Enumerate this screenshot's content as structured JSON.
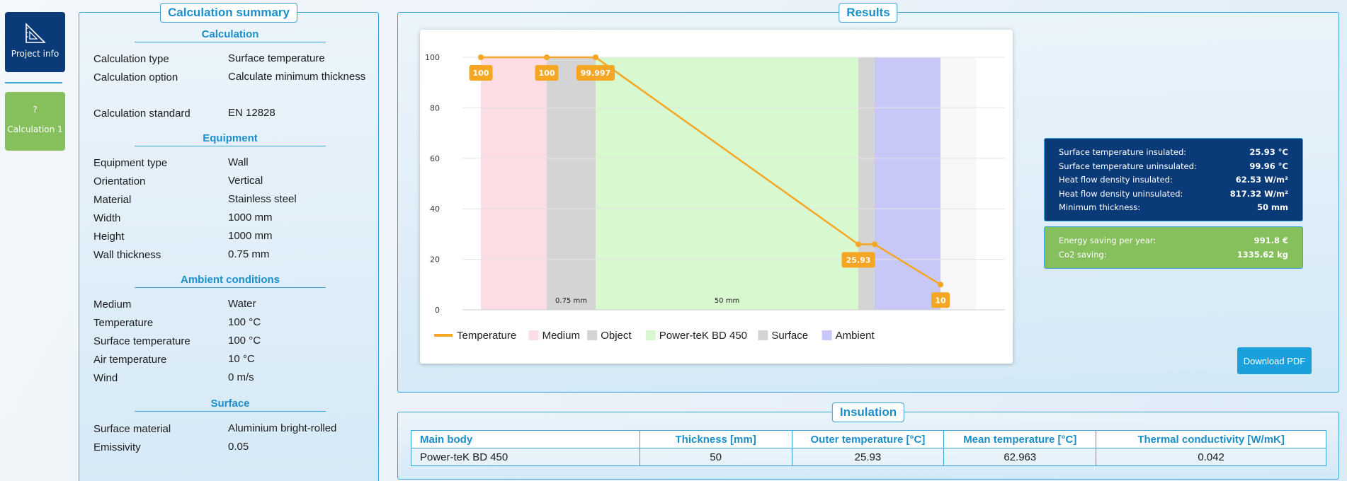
{
  "nav": {
    "project_info": "Project info",
    "calc_icon": "?",
    "calculation_1": "Calculation 1"
  },
  "summary": {
    "title": "Calculation summary",
    "sections": [
      {
        "heading": "Calculation",
        "rows": [
          {
            "label": "Calculation type",
            "value": "Surface temperature"
          },
          {
            "label": "Calculation option",
            "value": "Calculate minimum thickness"
          },
          {
            "label": "Calculation standard",
            "value": "EN 12828"
          }
        ]
      },
      {
        "heading": "Equipment",
        "rows": [
          {
            "label": "Equipment type",
            "value": "Wall"
          },
          {
            "label": "Orientation",
            "value": "Vertical"
          },
          {
            "label": "Material",
            "value": "Stainless steel"
          },
          {
            "label": "Width",
            "value": "1000 mm"
          },
          {
            "label": "Height",
            "value": "1000 mm"
          },
          {
            "label": "Wall thickness",
            "value": "0.75 mm"
          }
        ]
      },
      {
        "heading": "Ambient conditions",
        "rows": [
          {
            "label": "Medium",
            "value": "Water"
          },
          {
            "label": "Temperature",
            "value": "100 °C"
          },
          {
            "label": "Surface temperature",
            "value": "100 °C"
          },
          {
            "label": "Air temperature",
            "value": "10 °C"
          },
          {
            "label": "Wind",
            "value": "0 m/s"
          }
        ]
      },
      {
        "heading": "Surface",
        "rows": [
          {
            "label": "Surface material",
            "value": "Aluminium bright-rolled"
          },
          {
            "label": "Emissivity",
            "value": "0.05"
          }
        ]
      }
    ]
  },
  "results": {
    "title": "Results",
    "stats": [
      {
        "label": "Surface temperature insulated:",
        "value": "25.93 °C"
      },
      {
        "label": "Surface temperature uninsulated:",
        "value": "99.96 °C"
      },
      {
        "label": "Heat flow density insulated:",
        "value": "62.53 W/m²"
      },
      {
        "label": "Heat flow density uninsulated:",
        "value": "817.32 W/m²"
      },
      {
        "label": "Minimum thickness:",
        "value": "50 mm"
      }
    ],
    "savings": [
      {
        "label": "Energy saving per year:",
        "value": "991.8 €"
      },
      {
        "label": "Co2 saving:",
        "value": "1335.62 kg"
      }
    ],
    "download_label": "Download PDF"
  },
  "chart_data": {
    "type": "line",
    "title": "",
    "xlabel": "",
    "ylabel": "",
    "ylim": [
      0,
      100
    ],
    "yticks": [
      0,
      20,
      40,
      60,
      80,
      100
    ],
    "grid": true,
    "legend_position": "bottom-left",
    "regions": [
      {
        "name": "Medium",
        "color": "#fcdde3",
        "label": ""
      },
      {
        "name": "Object",
        "color": "#d4d4d4",
        "label": "0.75 mm"
      },
      {
        "name": "Power-teK BD 450",
        "color": "#d8f8d0",
        "label": "50 mm"
      },
      {
        "name": "Surface",
        "color": "#d4d4d4",
        "label": ""
      },
      {
        "name": "Ambient",
        "color": "#c8c8f8",
        "label": ""
      }
    ],
    "series": [
      {
        "name": "Temperature",
        "color": "#f5a623",
        "values": [
          100,
          100,
          99.997,
          25.93,
          25.93,
          10
        ],
        "data_labels": [
          "100",
          "100",
          "99.997",
          "25.93",
          "",
          "10"
        ]
      }
    ]
  },
  "insulation": {
    "title": "Insulation",
    "columns": [
      "Main body",
      "Thickness [mm]",
      "Outer temperature [°C]",
      "Mean temperature [°C]",
      "Thermal conductivity [W/mK]"
    ],
    "rows": [
      [
        "Power-teK BD 450",
        "50",
        "25.93",
        "62.963",
        "0.042"
      ]
    ]
  }
}
